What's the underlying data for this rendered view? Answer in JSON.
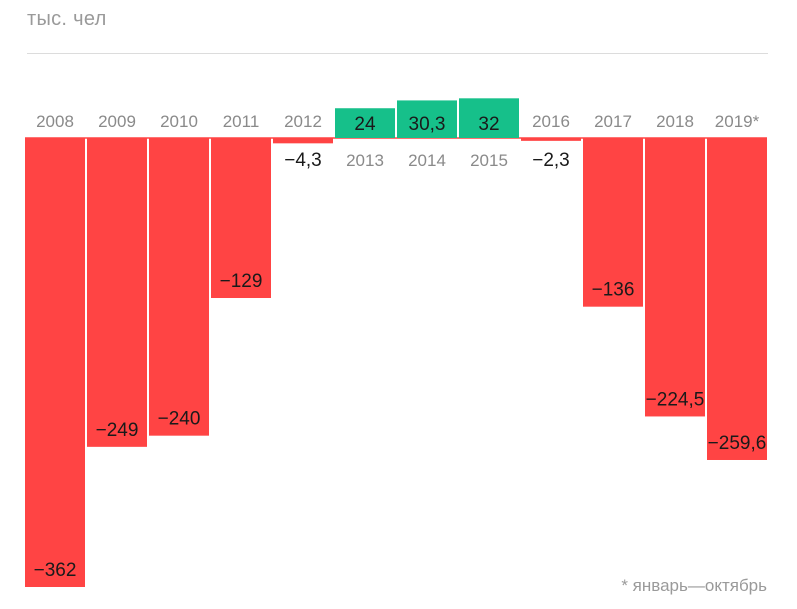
{
  "header": {
    "unit_label": "тыс. чел"
  },
  "footnote": "* январь—октябрь",
  "colors": {
    "negative": "#ff4444",
    "positive": "#16c08a",
    "year_text": "#8a8a8a",
    "value_text": "#1a1a1a",
    "zero_line": "#ff4444"
  },
  "chart_data": {
    "type": "bar",
    "title": "",
    "xlabel": "",
    "ylabel": "тыс. чел",
    "categories": [
      "2008",
      "2009",
      "2010",
      "2011",
      "2012",
      "2013",
      "2014",
      "2015",
      "2016",
      "2017",
      "2018",
      "2019*"
    ],
    "values": [
      -362,
      -249,
      -240,
      -129,
      -4.3,
      24,
      30.3,
      32,
      -2.3,
      -136,
      -224.5,
      -259.6
    ],
    "value_labels": [
      "−362",
      "−249",
      "−240",
      "−129",
      "−4,3",
      "24",
      "30,3",
      "32",
      "−2,3",
      "−136",
      "−224,5",
      "−259,6"
    ],
    "ylim": [
      -362,
      32
    ],
    "grid": false,
    "legend": "none"
  }
}
